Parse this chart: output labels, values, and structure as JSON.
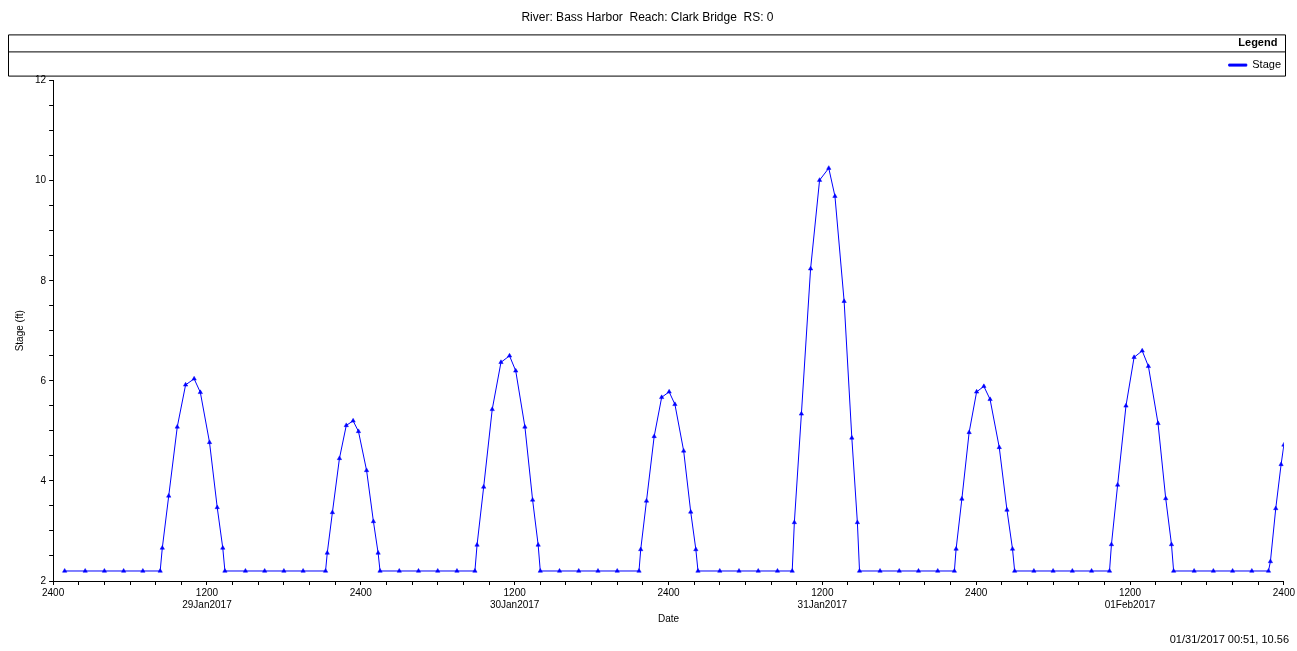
{
  "chart_data": {
    "type": "line",
    "title": "River: Bass Harbor  Reach: Clark Bridge  RS: 0",
    "xlabel": "Date",
    "ylabel": "Stage (ft)",
    "legend_title": "Legend",
    "legend": "top right",
    "marker": "triangle",
    "line_style": "solid",
    "grid": false,
    "annotations": [
      "01/31/2017 00:51, 10.56"
    ],
    "xlim": [
      "2017-01-29T00:00",
      "2017-02-02T00:00"
    ],
    "ylim": [
      2,
      12
    ],
    "xticks": [
      {
        "value": "2017-01-29T00:00",
        "label": "2400"
      },
      {
        "value": "2017-01-29T02:00",
        "label": null
      },
      {
        "value": "2017-01-29T04:00",
        "label": null
      },
      {
        "value": "2017-01-29T06:00",
        "label": null
      },
      {
        "value": "2017-01-29T08:00",
        "label": null
      },
      {
        "value": "2017-01-29T10:00",
        "label": null
      },
      {
        "value": "2017-01-29T12:00",
        "label": "1200\n29Jan2017"
      },
      {
        "value": "2017-01-29T14:00",
        "label": null
      },
      {
        "value": "2017-01-29T16:00",
        "label": null
      },
      {
        "value": "2017-01-29T18:00",
        "label": null
      },
      {
        "value": "2017-01-29T20:00",
        "label": null
      },
      {
        "value": "2017-01-29T22:00",
        "label": null
      },
      {
        "value": "2017-01-30T00:00",
        "label": "2400"
      },
      {
        "value": "2017-01-30T02:00",
        "label": null
      },
      {
        "value": "2017-01-30T04:00",
        "label": null
      },
      {
        "value": "2017-01-30T06:00",
        "label": null
      },
      {
        "value": "2017-01-30T08:00",
        "label": null
      },
      {
        "value": "2017-01-30T10:00",
        "label": null
      },
      {
        "value": "2017-01-30T12:00",
        "label": "1200\n30Jan2017"
      },
      {
        "value": "2017-01-30T14:00",
        "label": null
      },
      {
        "value": "2017-01-30T16:00",
        "label": null
      },
      {
        "value": "2017-01-30T18:00",
        "label": null
      },
      {
        "value": "2017-01-30T20:00",
        "label": null
      },
      {
        "value": "2017-01-30T22:00",
        "label": null
      },
      {
        "value": "2017-01-31T00:00",
        "label": "2400"
      },
      {
        "value": "2017-01-31T02:00",
        "label": null
      },
      {
        "value": "2017-01-31T04:00",
        "label": null
      },
      {
        "value": "2017-01-31T06:00",
        "label": null
      },
      {
        "value": "2017-01-31T08:00",
        "label": null
      },
      {
        "value": "2017-01-31T10:00",
        "label": null
      },
      {
        "value": "2017-01-31T12:00",
        "label": "1200\n31Jan2017"
      },
      {
        "value": "2017-01-31T14:00",
        "label": null
      },
      {
        "value": "2017-01-31T16:00",
        "label": null
      },
      {
        "value": "2017-01-31T18:00",
        "label": null
      },
      {
        "value": "2017-01-31T20:00",
        "label": null
      },
      {
        "value": "2017-01-31T22:00",
        "label": null
      },
      {
        "value": "2017-02-01T00:00",
        "label": "2400"
      },
      {
        "value": "2017-02-01T02:00",
        "label": null
      },
      {
        "value": "2017-02-01T04:00",
        "label": null
      },
      {
        "value": "2017-02-01T06:00",
        "label": null
      },
      {
        "value": "2017-02-01T08:00",
        "label": null
      },
      {
        "value": "2017-02-01T10:00",
        "label": null
      },
      {
        "value": "2017-02-01T12:00",
        "label": "1200\n01Feb2017"
      },
      {
        "value": "2017-02-01T14:00",
        "label": null
      },
      {
        "value": "2017-02-01T16:00",
        "label": null
      },
      {
        "value": "2017-02-01T18:00",
        "label": null
      },
      {
        "value": "2017-02-01T20:00",
        "label": null
      },
      {
        "value": "2017-02-01T22:00",
        "label": null
      },
      {
        "value": "2017-02-02T00:00",
        "label": "2400"
      }
    ],
    "yticks": [
      2,
      {
        "value": 2.5,
        "label": null
      },
      {
        "value": 3,
        "label": null
      },
      {
        "value": 3.5,
        "label": null
      },
      4,
      {
        "value": 4.5,
        "label": null
      },
      {
        "value": 5,
        "label": null
      },
      {
        "value": 5.5,
        "label": null
      },
      6,
      {
        "value": 6.5,
        "label": null
      },
      {
        "value": 7,
        "label": null
      },
      {
        "value": 7.5,
        "label": null
      },
      8,
      {
        "value": 8.5,
        "label": null
      },
      {
        "value": 9,
        "label": null
      },
      {
        "value": 9.5,
        "label": null
      },
      10,
      {
        "value": 10.5,
        "label": null
      },
      {
        "value": 11,
        "label": null
      },
      {
        "value": 11.5,
        "label": null
      },
      12
    ],
    "series": [
      {
        "name": "Stage",
        "color": "#0000ff",
        "x": [
          "2017-01-29T00:54",
          "2017-01-29T02:30",
          "2017-01-29T04:00",
          "2017-01-29T05:30",
          "2017-01-29T07:00",
          "2017-01-29T08:21",
          "2017-01-29T08:31",
          "2017-01-29T09:01",
          "2017-01-29T09:41",
          "2017-01-29T10:20",
          "2017-01-29T11:00",
          "2017-01-29T11:29",
          "2017-01-29T12:12",
          "2017-01-29T12:48",
          "2017-01-29T13:14",
          "2017-01-29T13:24",
          "2017-01-29T15:00",
          "2017-01-29T16:30",
          "2017-01-29T18:00",
          "2017-01-29T19:30",
          "2017-01-29T21:15",
          "2017-01-29T21:23",
          "2017-01-29T21:47",
          "2017-01-29T22:20",
          "2017-01-29T22:52",
          "2017-01-29T23:24",
          "2017-01-29T23:49",
          "2017-01-30T00:27",
          "2017-01-30T00:59",
          "2017-01-30T01:21",
          "2017-01-30T01:30",
          "2017-01-30T03:00",
          "2017-01-30T04:30",
          "2017-01-30T06:00",
          "2017-01-30T07:30",
          "2017-01-30T08:54",
          "2017-01-30T09:04",
          "2017-01-30T09:35",
          "2017-01-30T10:15",
          "2017-01-30T10:56",
          "2017-01-30T11:36",
          "2017-01-30T12:05",
          "2017-01-30T12:48",
          "2017-01-30T13:24",
          "2017-01-30T13:50",
          "2017-01-30T14:00",
          "2017-01-30T15:30",
          "2017-01-30T17:00",
          "2017-01-30T18:30",
          "2017-01-30T20:00",
          "2017-01-30T21:42",
          "2017-01-30T21:50",
          "2017-01-30T22:17",
          "2017-01-30T22:53",
          "2017-01-30T23:28",
          "2017-01-31T00:03",
          "2017-01-31T00:30",
          "2017-01-31T01:11",
          "2017-01-31T01:44",
          "2017-01-31T02:08",
          "2017-01-31T02:18",
          "2017-01-31T04:00",
          "2017-01-31T05:30",
          "2017-01-31T07:00",
          "2017-01-31T08:30",
          "2017-01-31T09:39",
          "2017-01-31T09:49",
          "2017-01-31T10:22",
          "2017-01-31T11:05",
          "2017-01-31T11:47",
          "2017-01-31T12:30",
          "2017-01-31T12:59",
          "2017-01-31T13:42",
          "2017-01-31T14:18",
          "2017-01-31T14:44",
          "2017-01-31T14:54",
          "2017-01-31T16:30",
          "2017-01-31T18:00",
          "2017-01-31T19:30",
          "2017-01-31T21:00",
          "2017-01-31T22:18",
          "2017-01-31T22:26",
          "2017-01-31T22:53",
          "2017-01-31T23:27",
          "2017-02-01T00:02",
          "2017-02-01T00:36",
          "2017-02-01T01:05",
          "2017-02-01T01:48",
          "2017-02-01T02:24",
          "2017-02-01T02:50",
          "2017-02-01T03:00",
          "2017-02-01T04:30",
          "2017-02-01T06:00",
          "2017-02-01T07:30",
          "2017-02-01T09:00",
          "2017-02-01T10:24",
          "2017-02-01T10:33",
          "2017-02-01T11:02",
          "2017-02-01T11:41",
          "2017-02-01T12:19",
          "2017-02-01T12:57",
          "2017-02-01T13:26",
          "2017-02-01T14:11",
          "2017-02-01T14:47",
          "2017-02-01T15:14",
          "2017-02-01T15:24",
          "2017-02-01T17:00",
          "2017-02-01T18:30",
          "2017-02-01T20:00",
          "2017-02-01T21:30",
          "2017-02-01T22:48",
          "2017-02-01T22:57",
          "2017-02-01T23:22",
          "2017-02-01T23:47",
          "2017-02-02T00:00"
        ],
        "values": [
          2.2,
          2.2,
          2.2,
          2.2,
          2.2,
          2.2,
          2.66,
          3.7,
          5.08,
          5.92,
          6.04,
          5.77,
          4.77,
          3.47,
          2.66,
          2.2,
          2.2,
          2.2,
          2.2,
          2.2,
          2.2,
          2.56,
          3.37,
          4.45,
          5.11,
          5.2,
          4.99,
          4.21,
          3.19,
          2.56,
          2.2,
          2.2,
          2.2,
          2.2,
          2.2,
          2.2,
          2.72,
          3.88,
          5.43,
          6.37,
          6.5,
          6.2,
          5.08,
          3.62,
          2.72,
          2.2,
          2.2,
          2.2,
          2.2,
          2.2,
          2.2,
          2.63,
          3.6,
          4.89,
          5.67,
          5.78,
          5.53,
          4.6,
          3.38,
          2.63,
          2.2,
          2.2,
          2.2,
          2.2,
          2.2,
          2.2,
          3.17,
          5.34,
          8.24,
          10.01,
          10.25,
          9.69,
          7.59,
          4.86,
          3.17,
          2.2,
          2.2,
          2.2,
          2.2,
          2.2,
          2.2,
          2.64,
          3.64,
          4.97,
          5.78,
          5.89,
          5.63,
          4.67,
          3.42,
          2.64,
          2.2,
          2.2,
          2.2,
          2.2,
          2.2,
          2.2,
          2.73,
          3.92,
          5.5,
          6.47,
          6.6,
          6.29,
          5.15,
          3.65,
          2.73,
          2.2,
          2.2,
          2.2,
          2.2,
          2.2,
          2.2,
          2.39,
          3.45,
          4.33,
          4.72
        ]
      }
    ]
  }
}
